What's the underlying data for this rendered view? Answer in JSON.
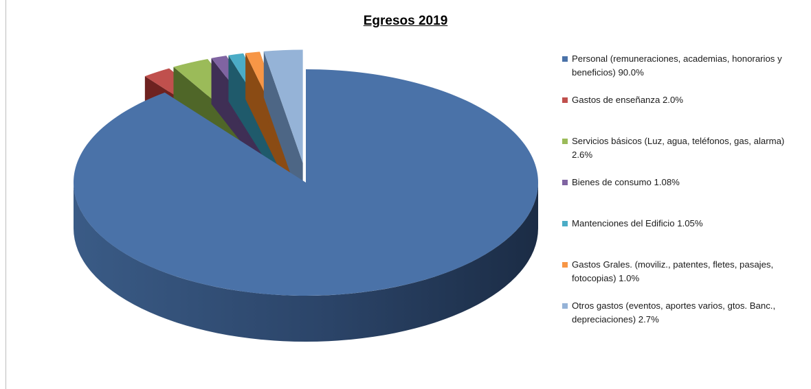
{
  "chart_data": {
    "type": "pie",
    "title": "Egresos 2019",
    "slices": [
      {
        "label": "Personal (remuneraciones, academias, honorarios y beneficios)",
        "value_text": "90.0%",
        "value": 90.0,
        "color": "#4A72A8",
        "side_color": "#2C4466",
        "exploded": false
      },
      {
        "label": "Gastos de enseñanza",
        "value_text": "2.0%",
        "value": 2.0,
        "color": "#C0504D",
        "side_color": "#6E2220",
        "exploded": true
      },
      {
        "label": "Servicios básicos (Luz, agua, teléfonos, gas, alarma)",
        "value_text": "2.6%",
        "value": 2.6,
        "color": "#9BBB59",
        "side_color": "#4F6628",
        "exploded": true
      },
      {
        "label": "Bienes de consumo",
        "value_text": "1.08%",
        "value": 1.08,
        "color": "#8064A2",
        "side_color": "#3F2F55",
        "exploded": true
      },
      {
        "label": "Mantenciones del Edificio",
        "value_text": "1.05%",
        "value": 1.05,
        "color": "#4BACC6",
        "side_color": "#1F5A6B",
        "exploded": true
      },
      {
        "label": "Gastos Grales. (moviliz., patentes, fletes, pasajes, fotocopias)",
        "value_text": "1.0%",
        "value": 1.0,
        "color": "#F79646",
        "side_color": "#8A4B14",
        "exploded": true
      },
      {
        "label": "Otros gastos (eventos, aportes varios, gtos. Banc., depreciaciones)",
        "value_text": "2.7%",
        "value": 2.7,
        "color": "#95B3D7",
        "side_color": "#4D6685",
        "exploded": true
      }
    ],
    "legend_position": "right"
  }
}
